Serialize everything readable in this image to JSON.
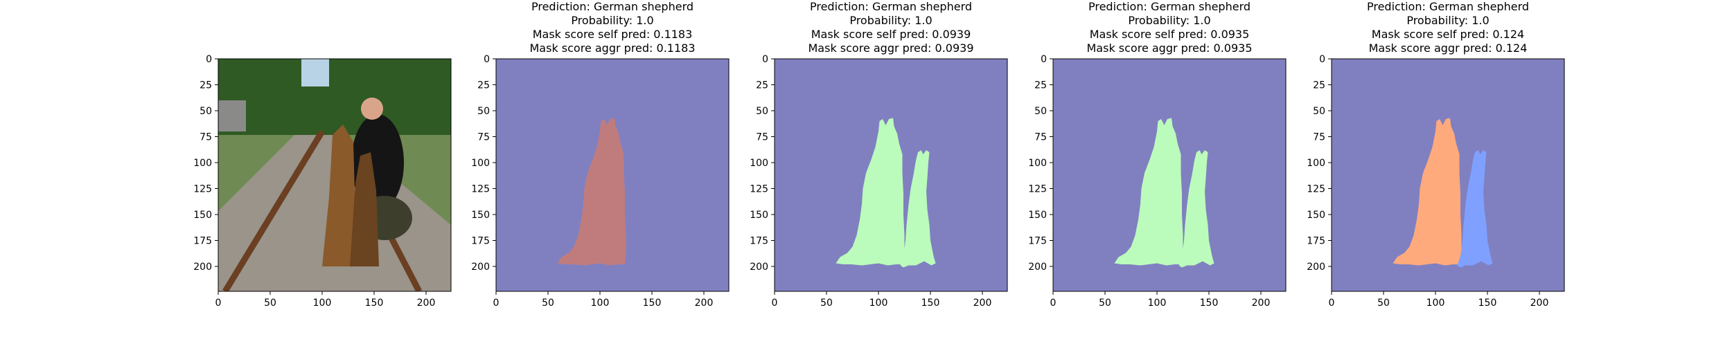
{
  "chart_data": [
    {
      "type": "image",
      "title_lines": [],
      "content": "photo",
      "xlim": [
        0,
        224
      ],
      "ylim": [
        224,
        0
      ],
      "xticks": [
        0,
        50,
        100,
        150,
        200
      ],
      "yticks": [
        0,
        25,
        50,
        75,
        100,
        125,
        150,
        175,
        200
      ]
    },
    {
      "type": "heatmap",
      "title_lines": [
        "Prediction: German shepherd",
        "Probability: 1.0",
        "Mask score self pred: 0.1183",
        "Mask score aggr pred: 0.1183"
      ],
      "background_color": "#8080c0",
      "mask_colors": [
        "#c07c7c"
      ],
      "masks": [
        "left-dog"
      ],
      "xlim": [
        0,
        224
      ],
      "ylim": [
        224,
        0
      ],
      "xticks": [
        0,
        50,
        100,
        150,
        200
      ],
      "yticks": [
        0,
        25,
        50,
        75,
        100,
        125,
        150,
        175,
        200
      ]
    },
    {
      "type": "heatmap",
      "title_lines": [
        "Prediction: German shepherd",
        "Probability: 1.0",
        "Mask score self pred: 0.0939",
        "Mask score aggr pred: 0.0939"
      ],
      "background_color": "#8080c0",
      "mask_colors": [
        "#bbfbbb",
        "#bbfbbb"
      ],
      "masks": [
        "left-dog",
        "right-dog"
      ],
      "xlim": [
        0,
        224
      ],
      "ylim": [
        224,
        0
      ],
      "xticks": [
        0,
        50,
        100,
        150,
        200
      ],
      "yticks": [
        0,
        25,
        50,
        75,
        100,
        125,
        150,
        175,
        200
      ]
    },
    {
      "type": "heatmap",
      "title_lines": [
        "Prediction: German shepherd",
        "Probability: 1.0",
        "Mask score self pred: 0.0935",
        "Mask score aggr pred: 0.0935"
      ],
      "background_color": "#8080c0",
      "mask_colors": [
        "#bbfbbb",
        "#bbfbbb"
      ],
      "masks": [
        "left-dog",
        "right-dog"
      ],
      "xlim": [
        0,
        224
      ],
      "ylim": [
        224,
        0
      ],
      "xticks": [
        0,
        50,
        100,
        150,
        200
      ],
      "yticks": [
        0,
        25,
        50,
        75,
        100,
        125,
        150,
        175,
        200
      ]
    },
    {
      "type": "heatmap",
      "title_lines": [
        "Prediction: German shepherd",
        "Probability: 1.0",
        "Mask score self pred: 0.124",
        "Mask score aggr pred: 0.124"
      ],
      "background_color": "#8080c0",
      "mask_colors": [
        "#ffaa7c",
        "#7fa0ff"
      ],
      "masks": [
        "left-dog",
        "right-dog"
      ],
      "xlim": [
        0,
        224
      ],
      "ylim": [
        224,
        0
      ],
      "xticks": [
        0,
        50,
        100,
        150,
        200
      ],
      "yticks": [
        0,
        25,
        50,
        75,
        100,
        125,
        150,
        175,
        200
      ]
    }
  ]
}
